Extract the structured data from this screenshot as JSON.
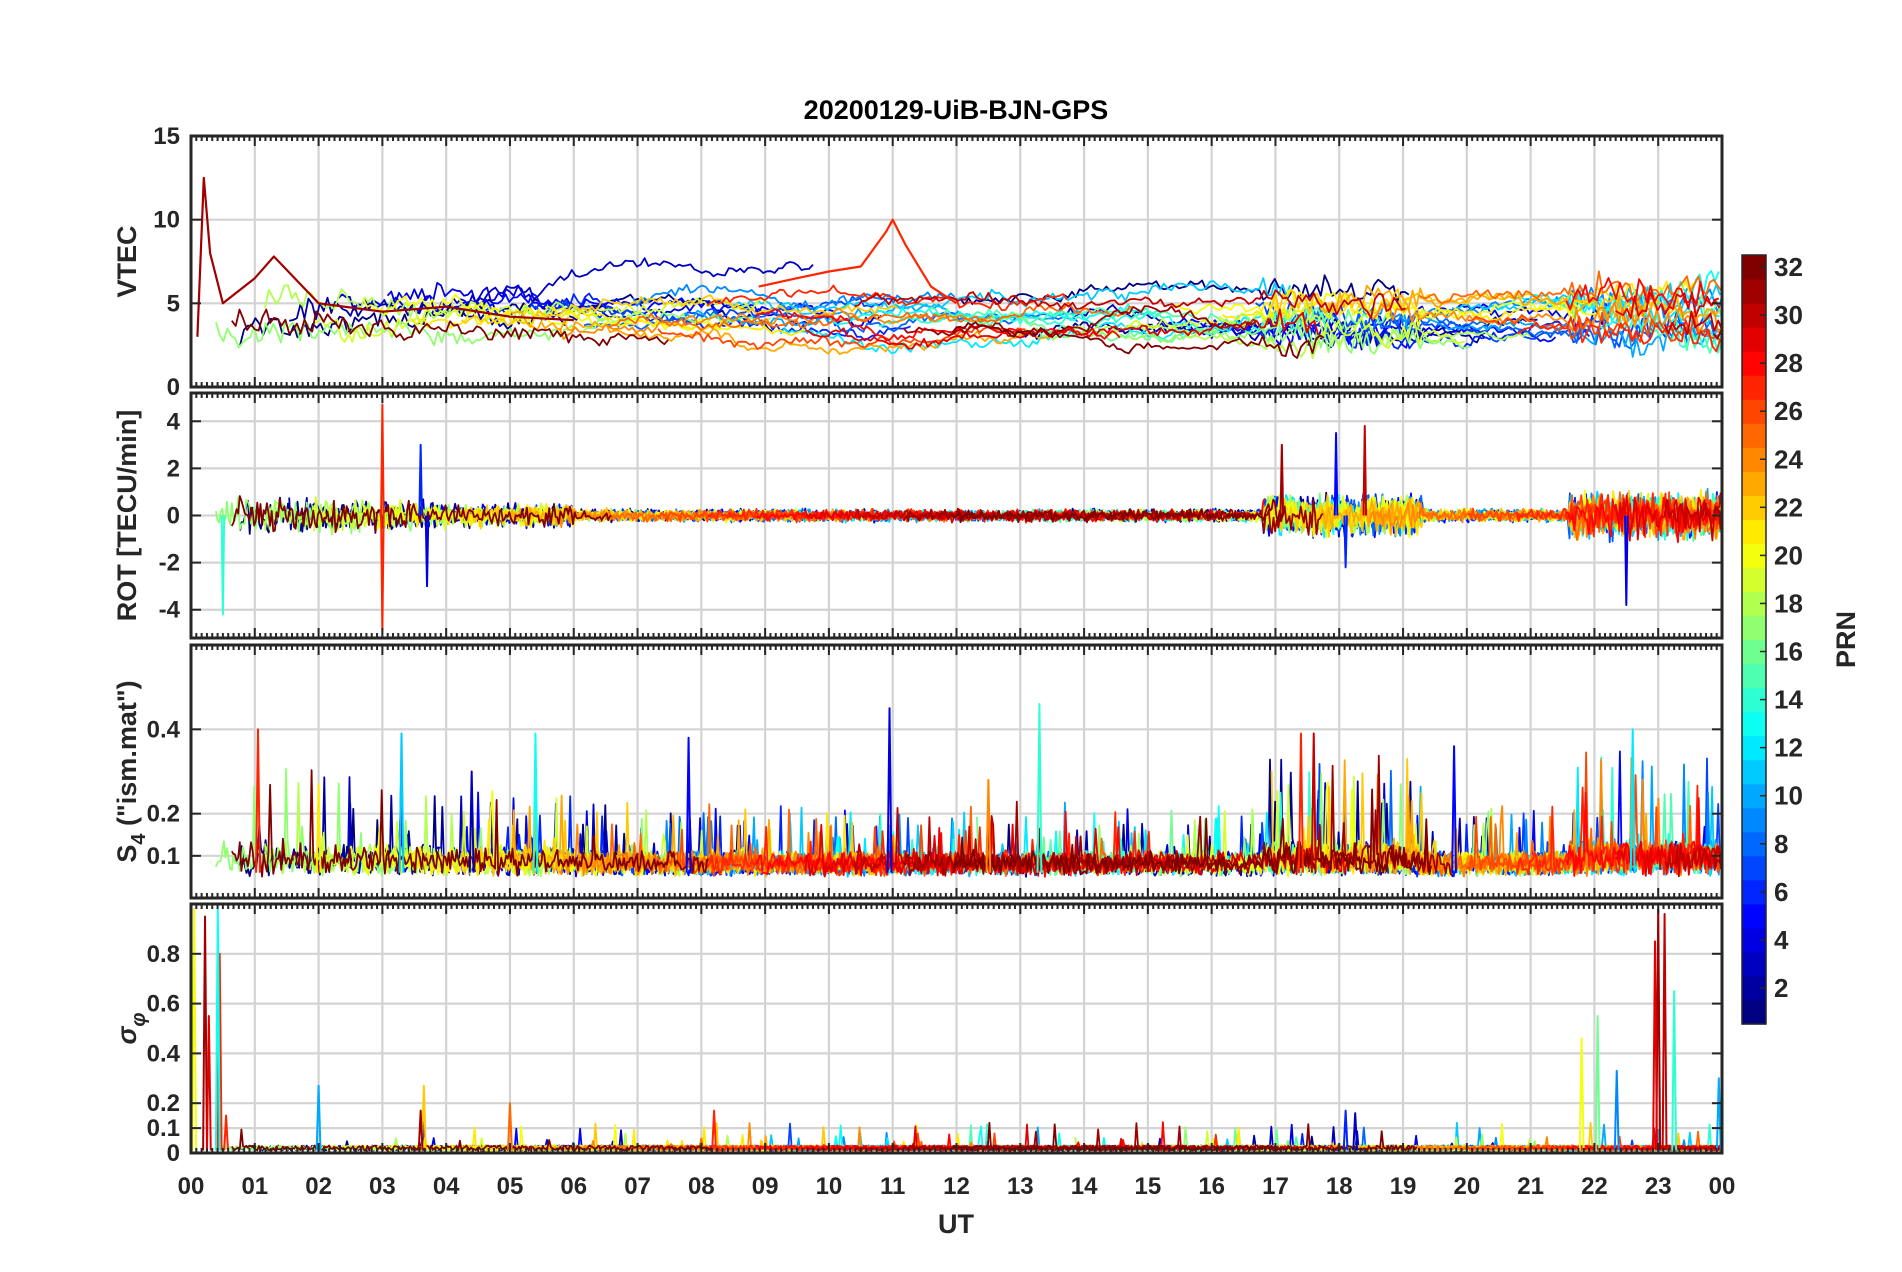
{
  "chart_data": {
    "type": "line",
    "title": "20200129-UiB-BJN-GPS",
    "xlabel": "UT",
    "xlim": [
      0,
      24
    ],
    "x_tick_labels": [
      "00",
      "01",
      "02",
      "03",
      "04",
      "05",
      "06",
      "07",
      "08",
      "09",
      "10",
      "11",
      "12",
      "13",
      "14",
      "15",
      "16",
      "17",
      "18",
      "19",
      "20",
      "21",
      "22",
      "23",
      "00"
    ],
    "colorbar": {
      "label": "PRN",
      "range": [
        1,
        32
      ],
      "colormap": "jet",
      "tick_labels": [
        "2",
        "4",
        "6",
        "8",
        "10",
        "12",
        "14",
        "16",
        "18",
        "20",
        "22",
        "24",
        "26",
        "28",
        "30",
        "32"
      ]
    },
    "panels": [
      {
        "ylabel": "VTEC",
        "ylim": [
          0,
          15
        ],
        "y_tick_labels": [
          "0",
          "5",
          "10",
          "15"
        ],
        "description": "Vertical TEC per PRN, mostly 2–7 TECU, with peaks near 12 TECU at 00:15 UT and ~10 TECU near 11 UT",
        "series_sample": [
          {
            "prn": 31,
            "x": [
              0.1,
              0.2,
              0.3,
              0.5,
              1.0,
              1.3,
              2.0,
              3.0,
              4.0,
              5.0,
              6.0
            ],
            "y": [
              3,
              12.5,
              8,
              5,
              6.5,
              7.8,
              5,
              4.5,
              4.8,
              4.2,
              4
            ]
          },
          {
            "prn": 27,
            "x": [
              8.9,
              9.5,
              10.0,
              10.5,
              10.9,
              11.0,
              11.2,
              11.6,
              12.0
            ],
            "y": [
              6,
              6.5,
              6.9,
              7.2,
              9.3,
              10,
              8.5,
              6,
              5
            ]
          }
        ]
      },
      {
        "ylabel": "ROT [TECU/min]",
        "ylim": [
          -5.2,
          5.2
        ],
        "y_tick_labels": [
          "-4",
          "-2",
          "0",
          "2",
          "4"
        ],
        "description": "Rate of TEC per PRN, mostly within ±1 TECU/min, spikes to ±4.7 near 03 UT and bursts near 17–19 UT and 22–24 UT"
      },
      {
        "ylabel": "S4 (\"ism.mat\")",
        "ylabel_main": "S",
        "ylabel_sub": "4",
        "ylabel_rest": " (\"ism.mat\")",
        "ylim": [
          0,
          0.6
        ],
        "y_tick_labels": [
          "0.1",
          "0.2",
          "0.4"
        ],
        "description": "Amplitude scintillation index per PRN, baseline 0.04–0.1 with spikes up to ~0.45"
      },
      {
        "ylabel": "σ φ",
        "ylabel_main": "σ",
        "ylabel_sub": "φ",
        "ylim": [
          0,
          1
        ],
        "y_tick_labels": [
          "0",
          "0.1",
          "0.2",
          "0.4",
          "0.6",
          "0.8"
        ],
        "description": "Phase scintillation index per PRN, near 0 with spikes near 00:15 (0.95), 00:30 (0.8) and 23:00 UT (0.98)"
      }
    ]
  }
}
